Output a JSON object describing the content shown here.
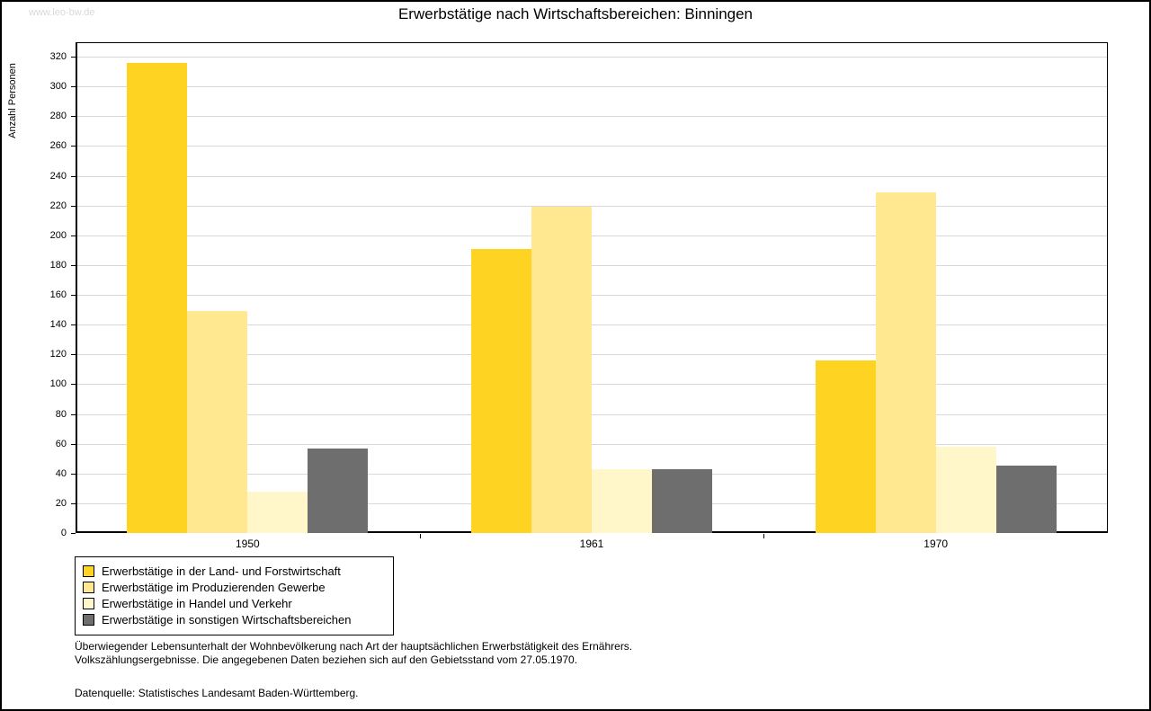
{
  "watermark": "www.leo-bw.de",
  "title": "Erwerbstätige nach Wirtschaftsbereichen: Binningen",
  "chart_data": {
    "type": "bar",
    "title": "Erwerbstätige nach Wirtschaftsbereichen: Binningen",
    "ylabel": "Anzahl Personen",
    "xlabel": "",
    "ylim": [
      0,
      320
    ],
    "ytick_step": 20,
    "grid": true,
    "legend_position": "bottom-left",
    "categories": [
      "1950",
      "1961",
      "1970"
    ],
    "series": [
      {
        "name": "Erwerbstätige in der Land- und Forstwirtschaft",
        "color": "#FFD321",
        "values": [
          316,
          191,
          116
        ]
      },
      {
        "name": "Erwerbstätige im Produzierenden Gewerbe",
        "color": "#FFE890",
        "values": [
          149,
          219,
          229
        ]
      },
      {
        "name": "Erwerbstätige in Handel und Verkehr",
        "color": "#FFF6CA",
        "values": [
          28,
          43,
          58
        ]
      },
      {
        "name": "Erwerbstätige in sonstigen Wirtschaftsbereichen",
        "color": "#6E6E6E",
        "values": [
          57,
          43,
          45
        ]
      }
    ]
  },
  "footnotes": {
    "line1": "Überwiegender Lebensunterhalt der Wohnbevölkerung nach Art der hauptsächlichen Erwerbstätigkeit des Ernährers.",
    "line2": "Volkszählungsergebnisse. Die angegebenen Daten beziehen sich auf den Gebietsstand vom 27.05.1970.",
    "source": "Datenquelle: Statistisches Landesamt Baden-Württemberg."
  }
}
